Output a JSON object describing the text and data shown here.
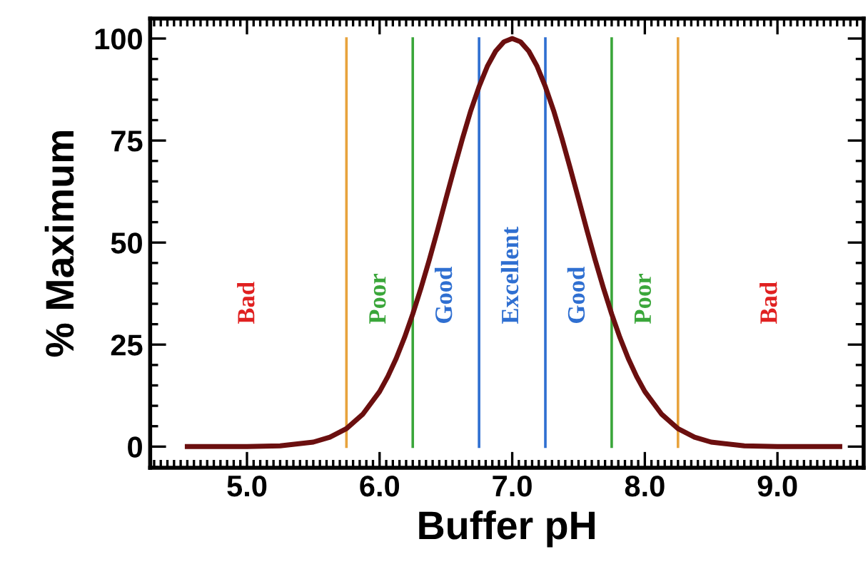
{
  "chart_data": {
    "type": "line",
    "xlabel": "Buffer pH",
    "ylabel": "% Maximum",
    "x": [
      4.55,
      5.0,
      5.25,
      5.5,
      5.625,
      5.75,
      5.875,
      6.0,
      6.0625,
      6.125,
      6.1875,
      6.25,
      6.3125,
      6.375,
      6.4375,
      6.5,
      6.5625,
      6.625,
      6.6875,
      6.75,
      6.8125,
      6.875,
      6.9375,
      7.0,
      7.0625,
      7.125,
      7.1875,
      7.25,
      7.3125,
      7.375,
      7.4375,
      7.5,
      7.5625,
      7.625,
      7.6875,
      7.75,
      7.8125,
      7.875,
      7.9375,
      8.0,
      8.125,
      8.25,
      8.375,
      8.5,
      8.75,
      9.0,
      9.47
    ],
    "series": [
      {
        "color": "#6b0f0f",
        "values": [
          0,
          0,
          0.2,
          1.1,
          2.3,
          4.4,
          8,
          13.5,
          17.2,
          21.6,
          26.7,
          32.5,
          38.9,
          45.8,
          53.1,
          60.7,
          68.2,
          75.5,
          82.3,
          88.2,
          93.2,
          96.9,
          99.2,
          100,
          99.2,
          96.9,
          93.2,
          88.2,
          82.3,
          75.5,
          68.2,
          60.7,
          53.1,
          45.8,
          38.9,
          32.5,
          26.7,
          21.6,
          17.2,
          13.5,
          8,
          4.4,
          2.3,
          1.1,
          0.2,
          0,
          0
        ]
      }
    ],
    "xlim": [
      4.27,
      9.65
    ],
    "ylim": [
      -5.2,
      104.9
    ],
    "xticks": [
      {
        "value": 5,
        "label": "5.0"
      },
      {
        "value": 6,
        "label": "6.0"
      },
      {
        "value": 7,
        "label": "7.0"
      },
      {
        "value": 8,
        "label": "8.0"
      },
      {
        "value": 9,
        "label": "9.0"
      }
    ],
    "yticks": [
      0,
      25,
      50,
      75,
      100
    ],
    "grid": false,
    "legend": false,
    "marker": "none",
    "line_style": "solid",
    "ref_lines": [
      {
        "axis": "x",
        "value": 5.75,
        "color": "#e8a33d"
      },
      {
        "axis": "x",
        "value": 6.25,
        "color": "#3aa63a"
      },
      {
        "axis": "x",
        "value": 6.75,
        "color": "#2f6fd1"
      },
      {
        "axis": "x",
        "value": 7.25,
        "color": "#2f6fd1"
      },
      {
        "axis": "x",
        "value": 7.75,
        "color": "#3aa63a"
      },
      {
        "axis": "x",
        "value": 8.25,
        "color": "#e8a33d"
      }
    ],
    "annotations": [
      "Bad",
      "Poor",
      "Good",
      "Excellent",
      "Good",
      "Poor",
      "Bad"
    ]
  }
}
